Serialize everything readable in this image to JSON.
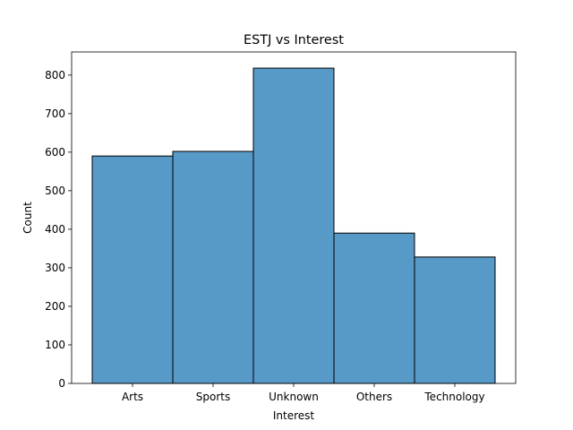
{
  "chart_data": {
    "type": "bar",
    "title": "ESTJ vs Interest",
    "xlabel": "Interest",
    "ylabel": "Count",
    "categories": [
      "Arts",
      "Sports",
      "Unknown",
      "Others",
      "Technology"
    ],
    "values": [
      590,
      602,
      818,
      390,
      328
    ],
    "ylim": [
      0,
      860
    ],
    "yticks": [
      0,
      100,
      200,
      300,
      400,
      500,
      600,
      700,
      800
    ],
    "bar_color": "#5799c7",
    "grid": false,
    "legend": "none"
  }
}
